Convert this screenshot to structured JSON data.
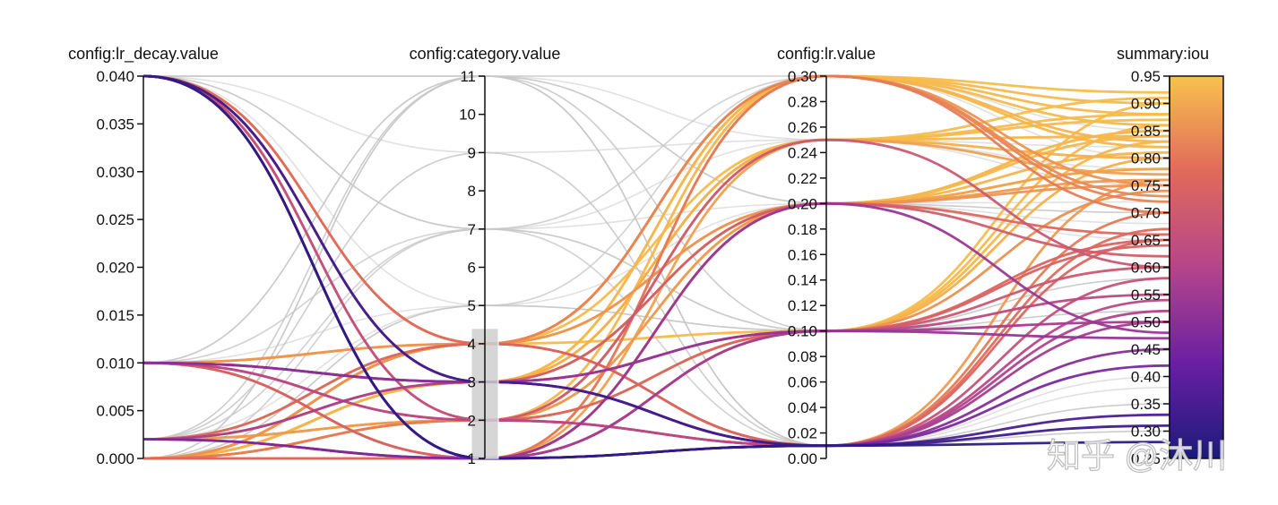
{
  "chart_data": {
    "type": "parallel-coordinates",
    "axes": [
      {
        "name": "config:lr_decay.value",
        "range": [
          0,
          0.04
        ],
        "ticks": [
          "0.000",
          "0.005",
          "0.010",
          "0.015",
          "0.020",
          "0.025",
          "0.030",
          "0.035",
          "0.040"
        ]
      },
      {
        "name": "config:category.value",
        "range": [
          1,
          11
        ],
        "ticks": [
          "1",
          "2",
          "3",
          "4",
          "5",
          "6",
          "7",
          "8",
          "9",
          "10",
          "11"
        ],
        "brush": [
          1,
          4.4
        ]
      },
      {
        "name": "config:lr.value",
        "range": [
          0,
          0.3
        ],
        "ticks": [
          "0.00",
          "0.02",
          "0.04",
          "0.06",
          "0.08",
          "0.10",
          "0.12",
          "0.14",
          "0.16",
          "0.18",
          "0.20",
          "0.22",
          "0.24",
          "0.26",
          "0.28",
          "0.30"
        ]
      },
      {
        "name": "summary:iou",
        "range": [
          0.25,
          0.95
        ],
        "ticks": [
          "0.25",
          "0.30",
          "0.35",
          "0.40",
          "0.45",
          "0.50",
          "0.55",
          "0.60",
          "0.65",
          "0.70",
          "0.75",
          "0.80",
          "0.85",
          "0.90",
          "0.95"
        ],
        "colorbar": true
      }
    ],
    "colorscale": [
      "#1c1a7a",
      "#6a1fa3",
      "#b5458a",
      "#e06a5a",
      "#f6b44a",
      "#f8c14e"
    ],
    "unselected_color": "#c8c8c8",
    "lines_highlighted": [
      [
        0.04,
        1,
        0.01,
        0.33
      ],
      [
        0.04,
        3,
        0.01,
        0.31
      ],
      [
        0.04,
        1,
        0.2,
        0.48
      ],
      [
        0.04,
        2,
        0.25,
        0.6
      ],
      [
        0.04,
        4,
        0.3,
        0.72
      ],
      [
        0.04,
        3,
        0.1,
        0.55
      ],
      [
        0.04,
        1,
        0.1,
        0.5
      ],
      [
        0.04,
        2,
        0.01,
        0.58
      ],
      [
        0.04,
        3,
        0.2,
        0.62
      ],
      [
        0.04,
        1,
        0.01,
        0.52
      ],
      [
        0.04,
        4,
        0.01,
        0.67
      ],
      [
        0.01,
        3,
        0.2,
        0.85
      ],
      [
        0.01,
        3,
        0.1,
        0.47
      ],
      [
        0.01,
        2,
        0.1,
        0.65
      ],
      [
        0.01,
        1,
        0.3,
        0.7
      ],
      [
        0.01,
        4,
        0.3,
        0.88
      ],
      [
        0.01,
        2,
        0.01,
        0.54
      ],
      [
        0.01,
        3,
        0.01,
        0.45
      ],
      [
        0.01,
        1,
        0.2,
        0.78
      ],
      [
        0.01,
        4,
        0.2,
        0.75
      ],
      [
        0.01,
        3,
        0.25,
        0.8
      ],
      [
        0.002,
        2,
        0.1,
        0.8
      ],
      [
        0.002,
        1,
        0.01,
        0.42
      ],
      [
        0.002,
        3,
        0.2,
        0.85
      ],
      [
        0.002,
        4,
        0.3,
        0.92
      ],
      [
        0.002,
        2,
        0.25,
        0.87
      ],
      [
        0.002,
        1,
        0.1,
        0.6
      ],
      [
        0.002,
        3,
        0.01,
        0.5
      ],
      [
        0.002,
        4,
        0.01,
        0.65
      ],
      [
        0.002,
        2,
        0.2,
        0.76
      ],
      [
        0.002,
        3,
        0.3,
        0.83
      ],
      [
        0,
        4,
        0.3,
        0.9
      ],
      [
        0,
        4,
        0.25,
        0.88
      ],
      [
        0,
        2,
        0.2,
        0.84
      ],
      [
        0,
        3,
        0.1,
        0.83
      ],
      [
        0,
        4,
        0.1,
        0.86
      ],
      [
        0,
        2,
        0.3,
        0.82
      ],
      [
        0,
        3,
        0.3,
        0.86
      ],
      [
        0,
        4,
        0.2,
        0.78
      ],
      [
        0,
        1,
        0.25,
        0.77
      ],
      [
        0,
        2,
        0.1,
        0.9
      ],
      [
        0,
        3,
        0.2,
        0.81
      ],
      [
        0,
        4,
        0.01,
        0.76
      ],
      [
        0,
        1,
        0.1,
        0.74
      ],
      [
        0,
        2,
        0.01,
        0.7
      ],
      [
        0,
        3,
        0.25,
        0.91
      ],
      [
        0,
        4,
        0.3,
        0.75
      ],
      [
        0,
        1,
        0.2,
        0.66
      ],
      [
        0,
        2,
        0.25,
        0.84
      ],
      [
        0.01,
        1,
        0.1,
        0.64
      ],
      [
        0.002,
        1,
        0.3,
        0.73
      ],
      [
        0.04,
        1,
        0.01,
        0.28
      ]
    ],
    "lines_unselected": [
      [
        0.04,
        11,
        0.2,
        0.7
      ],
      [
        0.04,
        7,
        0.3,
        0.8
      ],
      [
        0.04,
        5,
        0.1,
        0.6
      ],
      [
        0.04,
        11,
        0.01,
        0.45
      ],
      [
        0.04,
        9,
        0.25,
        0.75
      ],
      [
        0.01,
        7,
        0.2,
        0.65
      ],
      [
        0.01,
        11,
        0.1,
        0.55
      ],
      [
        0.01,
        5,
        0.3,
        0.85
      ],
      [
        0.01,
        7,
        0.01,
        0.4
      ],
      [
        0.002,
        11,
        0.3,
        0.9
      ],
      [
        0.002,
        7,
        0.1,
        0.5
      ],
      [
        0.002,
        5,
        0.2,
        0.72
      ],
      [
        0.002,
        9,
        0.01,
        0.35
      ],
      [
        0,
        7,
        0.25,
        0.82
      ],
      [
        0,
        11,
        0.2,
        0.68
      ],
      [
        0,
        5,
        0.1,
        0.58
      ],
      [
        0,
        7,
        0.01,
        0.38
      ],
      [
        0,
        5,
        0.3,
        0.88
      ],
      [
        0.04,
        7,
        0.1,
        0.52
      ],
      [
        0.01,
        11,
        0.25,
        0.78
      ],
      [
        0.002,
        7,
        0.3,
        0.92
      ],
      [
        0,
        11,
        0.01,
        0.3
      ]
    ]
  },
  "watermark": "知乎 @沐川"
}
